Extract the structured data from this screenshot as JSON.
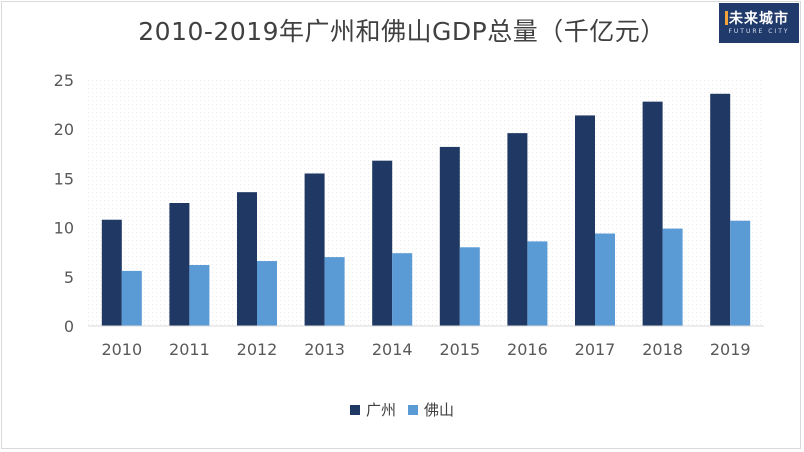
{
  "title": "2010-2019年广州和佛山GDP总量（千亿元）",
  "logo": {
    "main": "未来城市",
    "sub": "FUTURE CITY"
  },
  "colors": {
    "guangzhou": "#1f3864",
    "foshan": "#5b9bd5",
    "axis": "#595959",
    "grid": "#d9d9d9"
  },
  "chart_data": {
    "type": "bar",
    "title": "2010-2019年广州和佛山GDP总量（千亿元）",
    "xlabel": "",
    "ylabel": "",
    "categories": [
      "2010",
      "2011",
      "2012",
      "2013",
      "2014",
      "2015",
      "2016",
      "2017",
      "2018",
      "2019"
    ],
    "series": [
      {
        "name": "广州",
        "values": [
          10.8,
          12.5,
          13.6,
          15.5,
          16.8,
          18.2,
          19.6,
          21.4,
          22.8,
          23.6
        ]
      },
      {
        "name": "佛山",
        "values": [
          5.6,
          6.2,
          6.6,
          7.0,
          7.4,
          8.0,
          8.6,
          9.4,
          9.9,
          10.7
        ]
      }
    ],
    "ylim": [
      0,
      25
    ],
    "yticks": [
      "0",
      "5",
      "10",
      "15",
      "20",
      "25"
    ],
    "grid": false,
    "legend_position": "bottom"
  }
}
